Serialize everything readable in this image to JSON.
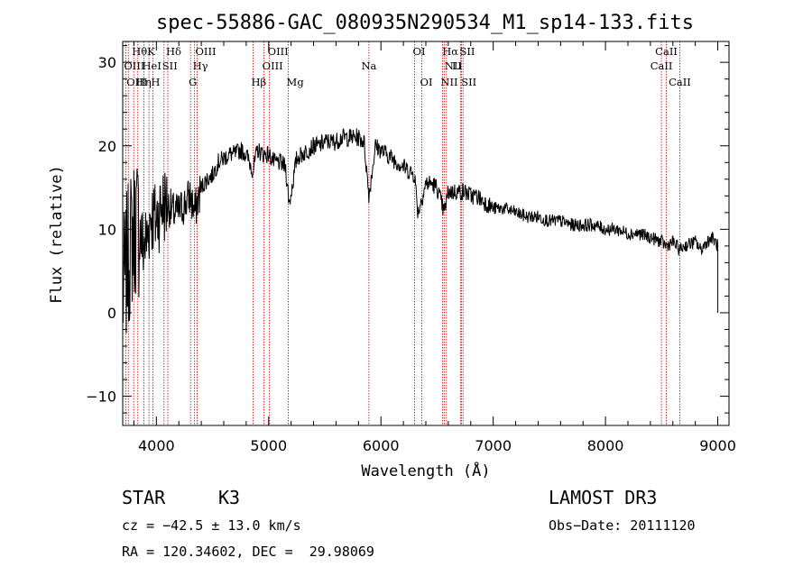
{
  "chart_data": {
    "type": "line",
    "title": "spec-55886-GAC_080935N290534_M1_sp14-133.fits",
    "xlabel": "Wavelength (Å)",
    "ylabel": "Flux (relative)",
    "xlim": [
      3700,
      9100
    ],
    "ylim": [
      -13.5,
      32.5
    ],
    "xticks": [
      4000,
      5000,
      6000,
      7000,
      8000,
      9000
    ],
    "yticks": [
      -10,
      0,
      10,
      20,
      30
    ],
    "x_minor_step": 200,
    "y_minor_step": 2,
    "series": [
      {
        "name": "flux",
        "x": [
          3700,
          3740,
          3780,
          3820,
          3850,
          3880,
          3920,
          3950,
          3990,
          4050,
          4100,
          4150,
          4200,
          4250,
          4300,
          4340,
          4400,
          4450,
          4500,
          4550,
          4600,
          4650,
          4700,
          4750,
          4800,
          4860,
          4900,
          4950,
          5000,
          5050,
          5100,
          5150,
          5183,
          5250,
          5300,
          5350,
          5400,
          5450,
          5500,
          5550,
          5600,
          5650,
          5700,
          5750,
          5800,
          5850,
          5893,
          5950,
          6000,
          6050,
          6100,
          6150,
          6200,
          6250,
          6300,
          6330,
          6400,
          6450,
          6500,
          6563,
          6600,
          6650,
          6700,
          6750,
          6800,
          6850,
          6900,
          6950,
          7000,
          7100,
          7200,
          7300,
          7400,
          7500,
          7600,
          7700,
          7800,
          7900,
          8000,
          8100,
          8200,
          8300,
          8400,
          8500,
          8542,
          8600,
          8662,
          8700,
          8800,
          8850,
          8900,
          8950,
          9000
        ],
        "values": [
          2,
          6,
          9,
          11,
          10,
          8,
          9,
          12,
          11,
          13,
          13,
          12,
          12,
          13,
          14,
          12,
          15,
          16,
          16.5,
          18,
          18.5,
          19,
          19,
          19.5,
          19,
          17,
          19.5,
          19,
          19,
          18,
          18,
          17.5,
          13,
          18.5,
          19,
          19.5,
          20,
          20,
          20.5,
          20.5,
          20.5,
          21,
          21,
          21,
          21,
          20.5,
          14,
          20,
          19.5,
          19,
          18.5,
          18,
          17.5,
          17,
          16.5,
          12,
          15.5,
          15.5,
          15,
          12,
          14.5,
          14.5,
          14.5,
          14.5,
          14,
          14,
          13.5,
          13,
          12.5,
          12.5,
          12,
          11.5,
          11.5,
          11,
          11,
          10.5,
          10.5,
          10.5,
          10,
          10,
          9.5,
          9.5,
          9,
          8.5,
          8,
          8.5,
          7.5,
          8,
          8.5,
          7.5,
          8.5,
          9,
          8
        ]
      }
    ],
    "spectral_lines": [
      {
        "label": "Hθ",
        "x": 3798,
        "row": 1,
        "side": "left"
      },
      {
        "label": "K",
        "x": 3934,
        "row": 1,
        "side": "left"
      },
      {
        "label": "Hδ",
        "x": 4102,
        "row": 1,
        "side": "left"
      },
      {
        "label": "OIII",
        "x": 4363,
        "row": 1,
        "side": "left"
      },
      {
        "label": "OIII",
        "x": 5007,
        "row": 1,
        "side": "left"
      },
      {
        "label": "OI",
        "x": 6300,
        "row": 1,
        "side": "left"
      },
      {
        "label": "Hα",
        "x": 6563,
        "row": 1,
        "side": "left"
      },
      {
        "label": "SII",
        "x": 6717,
        "row": 1,
        "side": "left"
      },
      {
        "label": "CaII",
        "x": 8542,
        "row": 1,
        "side": "center"
      },
      {
        "label": "OIII",
        "x": 3727,
        "row": 2,
        "side": "left"
      },
      {
        "label": "HeI",
        "x": 3889,
        "row": 2,
        "side": "left"
      },
      {
        "label": "SII",
        "x": 4068,
        "row": 2,
        "side": "left"
      },
      {
        "label": "Hγ",
        "x": 4340,
        "row": 2,
        "side": "left"
      },
      {
        "label": "OIII",
        "x": 4959,
        "row": 2,
        "side": "left"
      },
      {
        "label": "Na",
        "x": 5893,
        "row": 2,
        "side": "center"
      },
      {
        "label": "NII",
        "x": 6583,
        "row": 2,
        "side": "left"
      },
      {
        "label": "Li",
        "x": 6708,
        "row": 2,
        "side": "right"
      },
      {
        "label": "CaII",
        "x": 8498,
        "row": 2,
        "side": "center"
      },
      {
        "label": "OIII",
        "x": 3750,
        "row": 3,
        "side": "left"
      },
      {
        "label": "Hη",
        "x": 3835,
        "row": 3,
        "side": "left"
      },
      {
        "label": "H",
        "x": 3968,
        "row": 3,
        "side": "left"
      },
      {
        "label": "G",
        "x": 4304,
        "row": 3,
        "side": "left"
      },
      {
        "label": "Hβ",
        "x": 4861,
        "row": 3,
        "side": "left"
      },
      {
        "label": "Mg",
        "x": 5175,
        "row": 3,
        "side": "left"
      },
      {
        "label": "OI",
        "x": 6364,
        "row": 3,
        "side": "left"
      },
      {
        "label": "NII",
        "x": 6548,
        "row": 3,
        "side": "left"
      },
      {
        "label": "SII",
        "x": 6731,
        "row": 3,
        "side": "left"
      },
      {
        "label": "CaII",
        "x": 8662,
        "row": 3,
        "side": "center"
      }
    ],
    "colors": {
      "spectrum": "#000000",
      "lines": "#cc0000",
      "axis": "#000000"
    }
  },
  "info": {
    "object_type": "STAR",
    "subclass": "K3",
    "survey": "LAMOST DR3",
    "redshift": "cz = −42.5 ± 13.0 km/s",
    "obs_date": "Obs−Date: 20111120",
    "coords": "RA = 120.34602, DEC =  29.98069"
  }
}
